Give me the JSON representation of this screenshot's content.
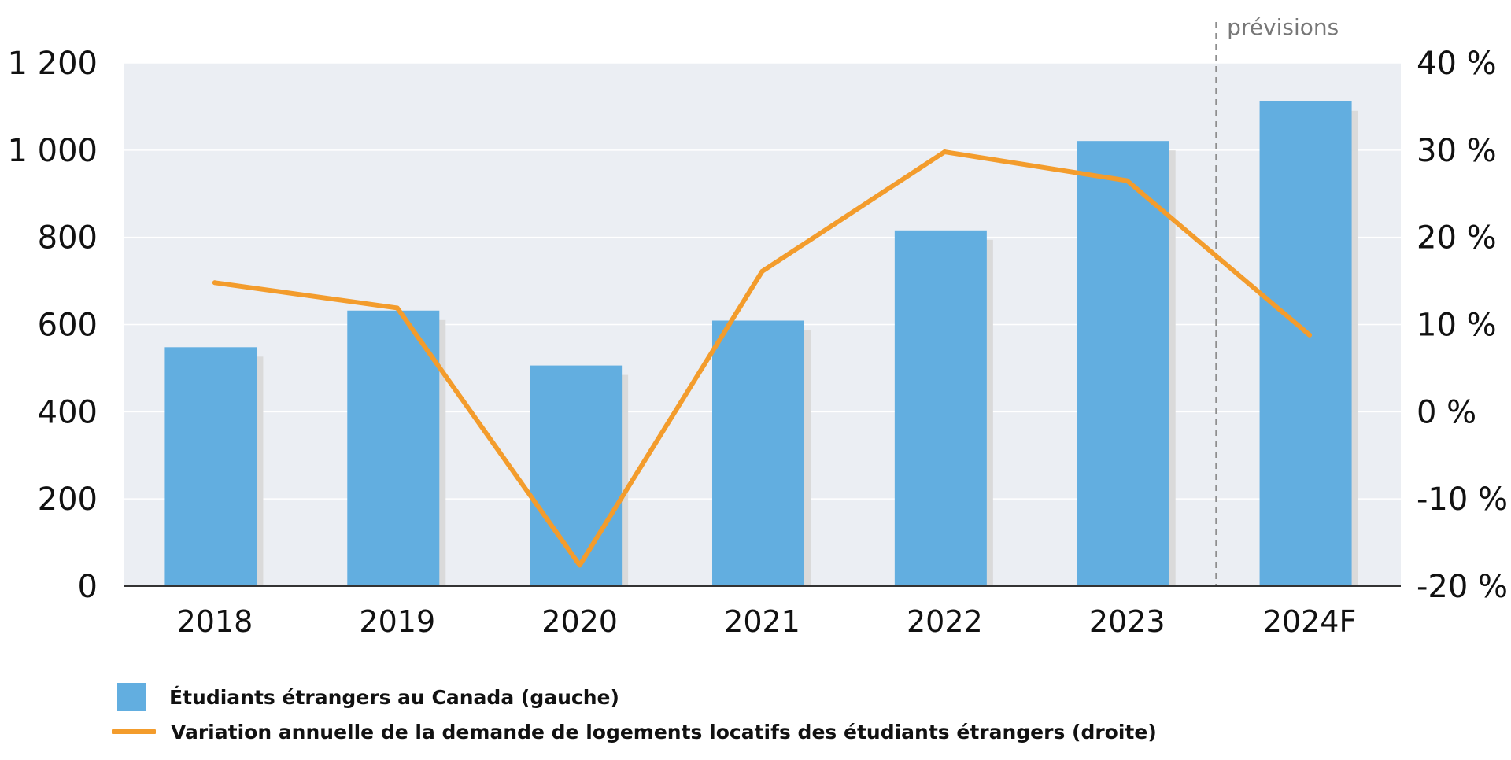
{
  "chart_data": {
    "type": "bar",
    "categories": [
      "2018",
      "2019",
      "2020",
      "2021",
      "2022",
      "2023",
      "2024F"
    ],
    "series": [
      {
        "name": "Étudiants étrangers au Canada (gauche)",
        "type": "bar",
        "axis": "left",
        "color": "#62aee0",
        "values": [
          548,
          632,
          506,
          609,
          816,
          1021,
          1112
        ]
      },
      {
        "name": "Variation annuelle de la demande de logements locatifs des étudiants étrangers (droite)",
        "type": "line",
        "axis": "right",
        "color": "#f39c2c",
        "values": [
          14.8,
          11.9,
          -17.6,
          16.1,
          29.8,
          26.5,
          8.8
        ]
      }
    ],
    "y_left": {
      "lim": [
        0,
        1200
      ],
      "ticks": [
        0,
        200,
        400,
        600,
        800,
        1000,
        1200
      ],
      "tick_labels": [
        "0",
        "200",
        "400",
        "600",
        "800",
        "1 000",
        "1 200"
      ]
    },
    "y_right": {
      "lim": [
        -20,
        40
      ],
      "ticks": [
        -20,
        -10,
        0,
        10,
        20,
        30,
        40
      ],
      "tick_labels": [
        "-20 %",
        "-10 %",
        "0 %",
        "10 %",
        "20 %",
        "30 %",
        "40 %"
      ]
    },
    "forecast": {
      "label": "prévisions",
      "from_category": "2024F"
    },
    "grid": true,
    "legend_position": "bottom-left",
    "colors": {
      "plot_background": "#ebeef3",
      "gridline": "#ffffff",
      "axis": "#333333",
      "shadow": "#dadada",
      "divider": "#888888"
    }
  }
}
